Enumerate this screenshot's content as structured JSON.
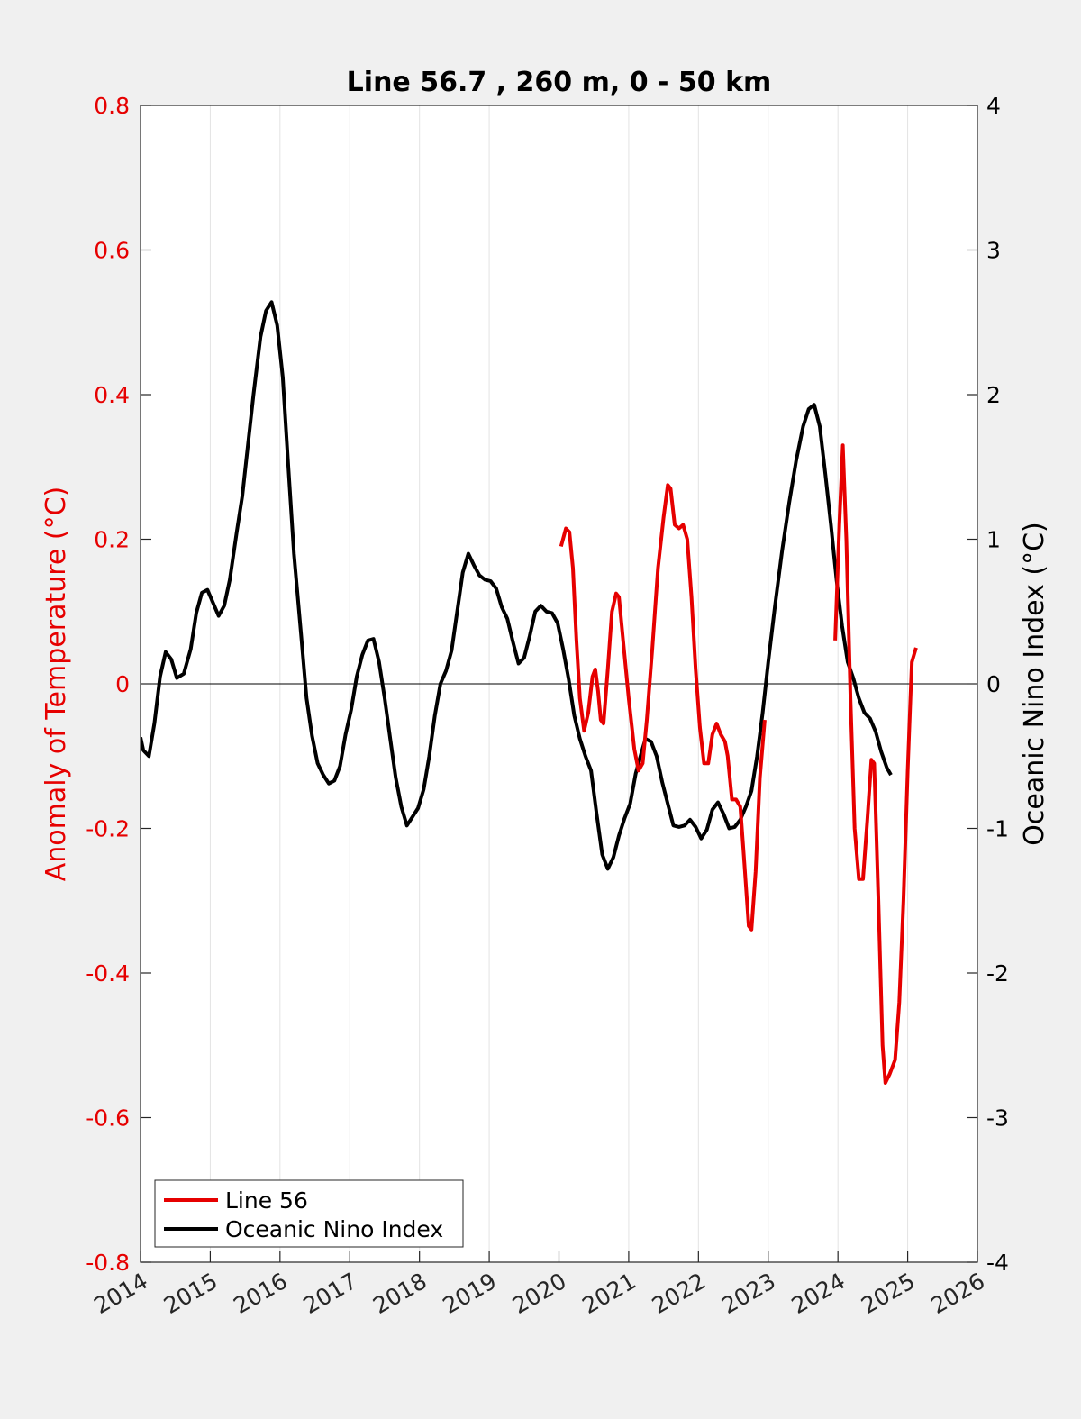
{
  "chart_data": {
    "type": "line",
    "title": "Line 56.7 , 260 m, 0 - 50 km",
    "xlim": [
      2014,
      2026
    ],
    "x_ticks": [
      "2014",
      "2015",
      "2016",
      "2017",
      "2018",
      "2019",
      "2020",
      "2021",
      "2022",
      "2023",
      "2024",
      "2025",
      "2026"
    ],
    "y_left": {
      "label": "Anomaly of Temperature (°C)",
      "lim": [
        -0.8,
        0.8
      ],
      "ticks": [
        "0.8",
        "0.6",
        "0.4",
        "0.2",
        "0",
        "-0.2",
        "-0.4",
        "-0.6",
        "-0.8"
      ],
      "color": "#e60000"
    },
    "y_right": {
      "label": "Oceanic Nino Index (°C)",
      "lim": [
        -4,
        4
      ],
      "ticks": [
        "4",
        "3",
        "2",
        "1",
        "0",
        "-1",
        "-2",
        "-3",
        "-4"
      ],
      "color": "#000000"
    },
    "grid": "vertical",
    "zero_line": true,
    "legend": {
      "placement": "bottom-left",
      "entries": [
        "Line 56",
        "Oceanic Nino Index"
      ]
    },
    "series": [
      {
        "name": "Line 56",
        "axis": "left",
        "color": "#e60000",
        "segments": [
          [
            [
              2020.03,
              0.19
            ],
            [
              2020.1,
              0.215
            ],
            [
              2020.15,
              0.21
            ],
            [
              2020.2,
              0.16
            ],
            [
              2020.25,
              0.06
            ],
            [
              2020.3,
              -0.02
            ],
            [
              2020.36,
              -0.065
            ],
            [
              2020.42,
              -0.04
            ],
            [
              2020.48,
              0.01
            ],
            [
              2020.52,
              0.02
            ],
            [
              2020.56,
              -0.01
            ],
            [
              2020.6,
              -0.05
            ],
            [
              2020.64,
              -0.055
            ],
            [
              2020.7,
              0.02
            ],
            [
              2020.76,
              0.1
            ],
            [
              2020.82,
              0.125
            ],
            [
              2020.86,
              0.12
            ],
            [
              2020.92,
              0.06
            ],
            [
              2021.0,
              -0.02
            ],
            [
              2021.08,
              -0.09
            ],
            [
              2021.14,
              -0.12
            ],
            [
              2021.2,
              -0.11
            ],
            [
              2021.26,
              -0.05
            ],
            [
              2021.34,
              0.05
            ],
            [
              2021.42,
              0.16
            ],
            [
              2021.5,
              0.23
            ],
            [
              2021.56,
              0.275
            ],
            [
              2021.6,
              0.27
            ],
            [
              2021.66,
              0.22
            ],
            [
              2021.72,
              0.215
            ],
            [
              2021.78,
              0.22
            ],
            [
              2021.84,
              0.2
            ],
            [
              2021.9,
              0.12
            ],
            [
              2021.96,
              0.02
            ],
            [
              2022.02,
              -0.06
            ],
            [
              2022.08,
              -0.11
            ],
            [
              2022.14,
              -0.11
            ],
            [
              2022.2,
              -0.07
            ],
            [
              2022.26,
              -0.055
            ],
            [
              2022.32,
              -0.07
            ],
            [
              2022.38,
              -0.08
            ],
            [
              2022.42,
              -0.1
            ],
            [
              2022.48,
              -0.16
            ],
            [
              2022.54,
              -0.16
            ],
            [
              2022.6,
              -0.17
            ],
            [
              2022.66,
              -0.25
            ],
            [
              2022.72,
              -0.335
            ],
            [
              2022.76,
              -0.34
            ],
            [
              2022.82,
              -0.26
            ],
            [
              2022.88,
              -0.13
            ],
            [
              2022.95,
              -0.05
            ]
          ],
          [
            [
              2023.96,
              0.06
            ],
            [
              2024.02,
              0.22
            ],
            [
              2024.07,
              0.33
            ],
            [
              2024.12,
              0.2
            ],
            [
              2024.18,
              -0.02
            ],
            [
              2024.24,
              -0.2
            ],
            [
              2024.3,
              -0.27
            ],
            [
              2024.36,
              -0.27
            ],
            [
              2024.42,
              -0.19
            ],
            [
              2024.48,
              -0.105
            ],
            [
              2024.52,
              -0.11
            ],
            [
              2024.58,
              -0.3
            ],
            [
              2024.64,
              -0.5
            ],
            [
              2024.68,
              -0.552
            ],
            [
              2024.74,
              -0.54
            ],
            [
              2024.82,
              -0.52
            ],
            [
              2024.88,
              -0.44
            ],
            [
              2024.94,
              -0.3
            ],
            [
              2025.0,
              -0.12
            ],
            [
              2025.06,
              0.03
            ],
            [
              2025.12,
              0.05
            ]
          ]
        ]
      },
      {
        "name": "Oceanic Nino Index",
        "axis": "right",
        "color": "#000000",
        "segments": [
          [
            [
              2014.0,
              -0.37
            ],
            [
              2014.04,
              -0.46
            ],
            [
              2014.12,
              -0.5
            ],
            [
              2014.2,
              -0.27
            ],
            [
              2014.28,
              0.05
            ],
            [
              2014.36,
              0.22
            ],
            [
              2014.44,
              0.17
            ],
            [
              2014.52,
              0.04
            ],
            [
              2014.62,
              0.07
            ],
            [
              2014.72,
              0.24
            ],
            [
              2014.8,
              0.49
            ],
            [
              2014.88,
              0.63
            ],
            [
              2014.96,
              0.65
            ],
            [
              2015.04,
              0.56
            ],
            [
              2015.12,
              0.47
            ],
            [
              2015.2,
              0.54
            ],
            [
              2015.28,
              0.72
            ],
            [
              2015.38,
              1.05
            ],
            [
              2015.46,
              1.3
            ],
            [
              2015.54,
              1.65
            ],
            [
              2015.62,
              2.0
            ],
            [
              2015.72,
              2.4
            ],
            [
              2015.8,
              2.58
            ],
            [
              2015.88,
              2.64
            ],
            [
              2015.96,
              2.48
            ],
            [
              2016.04,
              2.12
            ],
            [
              2016.12,
              1.5
            ],
            [
              2016.2,
              0.9
            ],
            [
              2016.3,
              0.35
            ],
            [
              2016.38,
              -0.1
            ],
            [
              2016.46,
              -0.36
            ],
            [
              2016.54,
              -0.55
            ],
            [
              2016.62,
              -0.63
            ],
            [
              2016.7,
              -0.69
            ],
            [
              2016.78,
              -0.67
            ],
            [
              2016.86,
              -0.57
            ],
            [
              2016.94,
              -0.35
            ],
            [
              2017.02,
              -0.18
            ],
            [
              2017.1,
              0.05
            ],
            [
              2017.18,
              0.2
            ],
            [
              2017.26,
              0.3
            ],
            [
              2017.34,
              0.31
            ],
            [
              2017.42,
              0.15
            ],
            [
              2017.5,
              -0.1
            ],
            [
              2017.58,
              -0.38
            ],
            [
              2017.66,
              -0.65
            ],
            [
              2017.74,
              -0.85
            ],
            [
              2017.82,
              -0.98
            ],
            [
              2017.9,
              -0.92
            ],
            [
              2017.98,
              -0.86
            ],
            [
              2018.06,
              -0.73
            ],
            [
              2018.14,
              -0.5
            ],
            [
              2018.22,
              -0.22
            ],
            [
              2018.3,
              0.0
            ],
            [
              2018.38,
              0.09
            ],
            [
              2018.46,
              0.23
            ],
            [
              2018.54,
              0.5
            ],
            [
              2018.62,
              0.77
            ],
            [
              2018.7,
              0.9
            ],
            [
              2018.78,
              0.82
            ],
            [
              2018.86,
              0.75
            ],
            [
              2018.94,
              0.72
            ],
            [
              2019.02,
              0.71
            ],
            [
              2019.1,
              0.66
            ],
            [
              2019.18,
              0.53
            ],
            [
              2019.26,
              0.45
            ],
            [
              2019.34,
              0.29
            ],
            [
              2019.42,
              0.14
            ],
            [
              2019.5,
              0.18
            ],
            [
              2019.58,
              0.33
            ],
            [
              2019.66,
              0.5
            ],
            [
              2019.74,
              0.54
            ],
            [
              2019.82,
              0.5
            ],
            [
              2019.9,
              0.49
            ],
            [
              2019.98,
              0.42
            ],
            [
              2020.06,
              0.24
            ],
            [
              2020.14,
              0.03
            ],
            [
              2020.22,
              -0.22
            ],
            [
              2020.3,
              -0.38
            ],
            [
              2020.38,
              -0.5
            ],
            [
              2020.46,
              -0.6
            ],
            [
              2020.54,
              -0.9
            ],
            [
              2020.62,
              -1.18
            ],
            [
              2020.7,
              -1.28
            ],
            [
              2020.78,
              -1.2
            ],
            [
              2020.86,
              -1.05
            ],
            [
              2020.94,
              -0.93
            ],
            [
              2021.02,
              -0.83
            ],
            [
              2021.1,
              -0.62
            ],
            [
              2021.18,
              -0.48
            ],
            [
              2021.24,
              -0.38
            ],
            [
              2021.32,
              -0.4
            ],
            [
              2021.4,
              -0.5
            ],
            [
              2021.48,
              -0.68
            ],
            [
              2021.56,
              -0.83
            ],
            [
              2021.64,
              -0.98
            ],
            [
              2021.72,
              -0.99
            ],
            [
              2021.8,
              -0.98
            ],
            [
              2021.88,
              -0.94
            ],
            [
              2021.96,
              -0.99
            ],
            [
              2022.04,
              -1.07
            ],
            [
              2022.12,
              -1.01
            ],
            [
              2022.2,
              -0.87
            ],
            [
              2022.28,
              -0.82
            ],
            [
              2022.36,
              -0.9
            ],
            [
              2022.44,
              -1.0
            ],
            [
              2022.52,
              -0.99
            ],
            [
              2022.6,
              -0.94
            ],
            [
              2022.68,
              -0.85
            ],
            [
              2022.76,
              -0.74
            ],
            [
              2022.84,
              -0.5
            ],
            [
              2022.92,
              -0.2
            ],
            [
              2023.0,
              0.15
            ],
            [
              2023.1,
              0.55
            ],
            [
              2023.2,
              0.92
            ],
            [
              2023.3,
              1.25
            ],
            [
              2023.4,
              1.54
            ],
            [
              2023.5,
              1.78
            ],
            [
              2023.58,
              1.9
            ],
            [
              2023.66,
              1.93
            ],
            [
              2023.74,
              1.78
            ],
            [
              2023.82,
              1.45
            ],
            [
              2023.9,
              1.1
            ],
            [
              2023.98,
              0.72
            ],
            [
              2024.06,
              0.4
            ],
            [
              2024.14,
              0.15
            ],
            [
              2024.22,
              0.04
            ],
            [
              2024.3,
              -0.1
            ],
            [
              2024.38,
              -0.2
            ],
            [
              2024.46,
              -0.24
            ],
            [
              2024.54,
              -0.33
            ],
            [
              2024.62,
              -0.47
            ],
            [
              2024.7,
              -0.58
            ],
            [
              2024.76,
              -0.63
            ]
          ]
        ]
      }
    ]
  }
}
